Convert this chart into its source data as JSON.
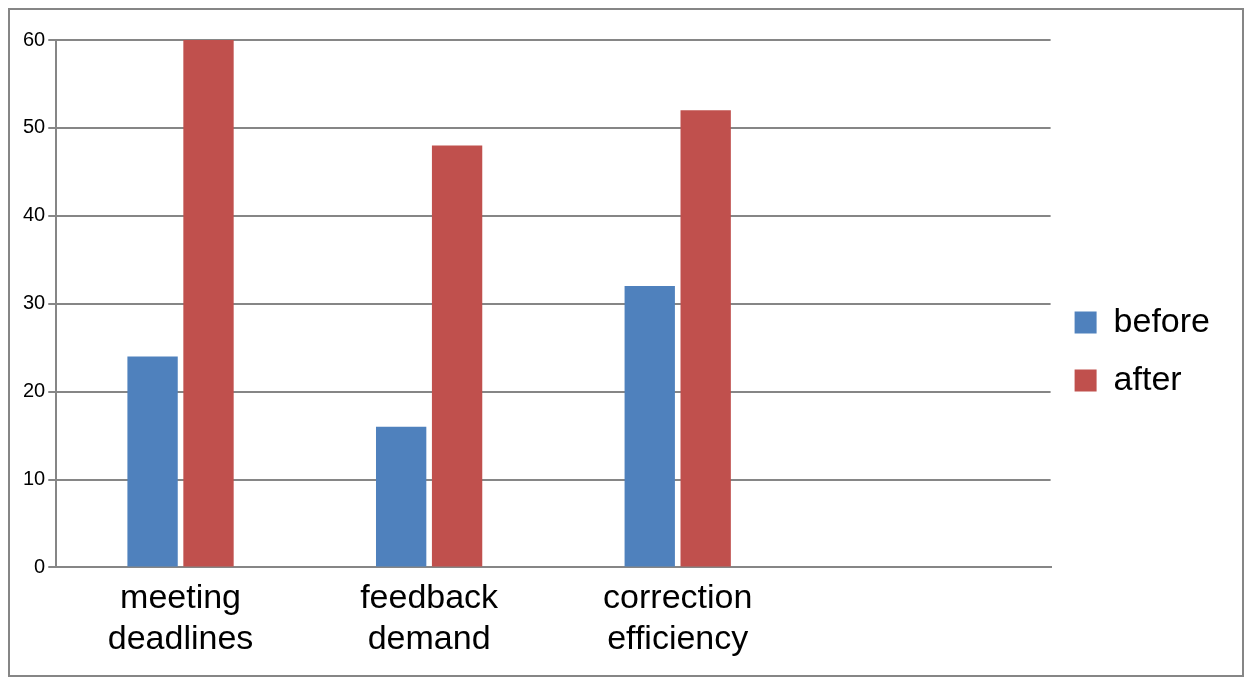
{
  "chart_data": {
    "type": "bar",
    "categories": [
      "meeting deadlines",
      "feedback demand",
      "correction efficiency",
      null
    ],
    "series": [
      {
        "name": "before",
        "color": "#4f81bd",
        "values": [
          24,
          16,
          32,
          null
        ]
      },
      {
        "name": "after",
        "color": "#c0504d",
        "values": [
          60,
          48,
          52,
          null
        ]
      }
    ],
    "ylim": [
      0,
      60
    ],
    "yticks": [
      0,
      10,
      20,
      30,
      40,
      50,
      60
    ],
    "grid": "y",
    "legend": "right"
  }
}
